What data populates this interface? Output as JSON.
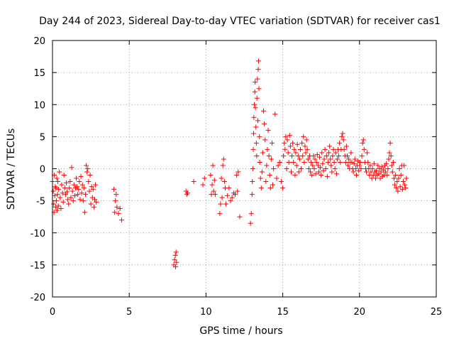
{
  "chart_data": {
    "type": "scatter",
    "title": "Day 244 of 2023, Sidereal Day-to-day VTEC variation (SDTVAR) for receiver cas1",
    "xlabel": "GPS time / hours",
    "ylabel": "SDTVAR / TECUs",
    "xlim": [
      0,
      25
    ],
    "ylim": [
      -20,
      20
    ],
    "xticks": [
      0,
      5,
      10,
      15,
      20,
      25
    ],
    "yticks": [
      -20,
      -15,
      -10,
      -5,
      0,
      5,
      10,
      15,
      20
    ],
    "grid": true,
    "marker": "+",
    "color": "#ff0000",
    "series": [
      {
        "name": "SDTVAR",
        "points": [
          [
            0.0,
            -2.0
          ],
          [
            0.05,
            -3.5
          ],
          [
            0.08,
            -5.5
          ],
          [
            0.1,
            -6.8
          ],
          [
            0.12,
            -1.0
          ],
          [
            0.15,
            -4.2
          ],
          [
            0.18,
            -2.8
          ],
          [
            0.2,
            -6.0
          ],
          [
            0.22,
            -3.0
          ],
          [
            0.25,
            -5.0
          ],
          [
            0.28,
            -1.5
          ],
          [
            0.3,
            -6.5
          ],
          [
            0.33,
            -4.0
          ],
          [
            0.35,
            -2.0
          ],
          [
            0.38,
            -5.8
          ],
          [
            0.4,
            -3.2
          ],
          [
            0.45,
            -0.5
          ],
          [
            0.5,
            -4.5
          ],
          [
            0.55,
            -6.2
          ],
          [
            0.6,
            -2.5
          ],
          [
            0.65,
            -3.8
          ],
          [
            0.7,
            -5.2
          ],
          [
            0.75,
            -1.0
          ],
          [
            0.8,
            -3.0
          ],
          [
            0.85,
            -4.0
          ],
          [
            0.9,
            -2.2
          ],
          [
            0.95,
            -3.6
          ],
          [
            1.0,
            -4.8
          ],
          [
            1.05,
            -5.5
          ],
          [
            1.1,
            -3.0
          ],
          [
            1.15,
            -2.0
          ],
          [
            1.2,
            -4.5
          ],
          [
            1.25,
            0.2
          ],
          [
            1.3,
            -3.5
          ],
          [
            1.35,
            -5.0
          ],
          [
            1.4,
            -2.5
          ],
          [
            1.45,
            -4.2
          ],
          [
            1.5,
            -3.0
          ],
          [
            1.55,
            -1.5
          ],
          [
            1.6,
            -2.8
          ],
          [
            1.65,
            -4.0
          ],
          [
            1.7,
            -3.2
          ],
          [
            1.75,
            -2.0
          ],
          [
            1.8,
            -4.8
          ],
          [
            1.85,
            -1.2
          ],
          [
            1.9,
            -3.8
          ],
          [
            1.95,
            -2.5
          ],
          [
            2.0,
            -5.0
          ],
          [
            2.05,
            -3.0
          ],
          [
            2.1,
            -6.8
          ],
          [
            2.15,
            -4.0
          ],
          [
            2.2,
            0.5
          ],
          [
            2.25,
            -0.5
          ],
          [
            2.3,
            0.0
          ],
          [
            2.35,
            -2.0
          ],
          [
            2.4,
            -3.5
          ],
          [
            2.45,
            -1.0
          ],
          [
            2.5,
            -5.5
          ],
          [
            2.55,
            -2.8
          ],
          [
            2.6,
            -4.5
          ],
          [
            2.65,
            -3.2
          ],
          [
            2.7,
            -6.0
          ],
          [
            2.75,
            -4.8
          ],
          [
            2.8,
            -2.5
          ],
          [
            2.85,
            -5.2
          ],
          [
            4.0,
            -3.2
          ],
          [
            4.05,
            -6.8
          ],
          [
            4.1,
            -5.0
          ],
          [
            4.15,
            -4.0
          ],
          [
            4.2,
            -6.0
          ],
          [
            4.3,
            -7.0
          ],
          [
            4.4,
            -6.2
          ],
          [
            4.5,
            -8.0
          ],
          [
            7.9,
            -15.0
          ],
          [
            7.95,
            -14.2
          ],
          [
            8.0,
            -13.5
          ],
          [
            8.02,
            -15.3
          ],
          [
            8.05,
            -13.0
          ],
          [
            8.08,
            -14.6
          ],
          [
            8.7,
            -3.5
          ],
          [
            8.75,
            -4.0
          ],
          [
            8.8,
            -3.8
          ],
          [
            9.2,
            -2.0
          ],
          [
            9.8,
            -2.5
          ],
          [
            9.9,
            -1.5
          ],
          [
            10.3,
            -1.0
          ],
          [
            10.35,
            -4.0
          ],
          [
            10.4,
            -2.5
          ],
          [
            10.45,
            0.5
          ],
          [
            10.5,
            -3.5
          ],
          [
            10.55,
            -1.8
          ],
          [
            10.6,
            -4.0
          ],
          [
            10.9,
            -7.0
          ],
          [
            10.95,
            -5.5
          ],
          [
            11.0,
            -1.5
          ],
          [
            11.05,
            -4.5
          ],
          [
            11.1,
            0.5
          ],
          [
            11.15,
            1.5
          ],
          [
            11.2,
            -2.0
          ],
          [
            11.25,
            -3.0
          ],
          [
            11.3,
            -5.5
          ],
          [
            11.4,
            -4.2
          ],
          [
            11.5,
            -3.0
          ],
          [
            11.6,
            -5.0
          ],
          [
            11.7,
            -4.5
          ],
          [
            11.8,
            -3.8
          ],
          [
            11.9,
            -4.0
          ],
          [
            12.0,
            -1.0
          ],
          [
            12.05,
            -3.5
          ],
          [
            12.1,
            -0.5
          ],
          [
            12.2,
            -7.5
          ],
          [
            12.9,
            -8.5
          ],
          [
            12.95,
            -7.0
          ],
          [
            13.0,
            -4.0
          ],
          [
            13.02,
            -2.0
          ],
          [
            13.05,
            0.0
          ],
          [
            13.08,
            3.0
          ],
          [
            13.1,
            5.5
          ],
          [
            13.12,
            8.0
          ],
          [
            13.15,
            10.0
          ],
          [
            13.18,
            12.0
          ],
          [
            13.2,
            13.5
          ],
          [
            13.22,
            9.5
          ],
          [
            13.25,
            6.5
          ],
          [
            13.28,
            4.0
          ],
          [
            13.3,
            2.0
          ],
          [
            13.32,
            11.0
          ],
          [
            13.35,
            14.0
          ],
          [
            13.38,
            7.5
          ],
          [
            13.4,
            15.5
          ],
          [
            13.42,
            16.8
          ],
          [
            13.45,
            12.5
          ],
          [
            13.48,
            5.0
          ],
          [
            13.5,
            1.0
          ],
          [
            13.55,
            -1.5
          ],
          [
            13.6,
            -3.0
          ],
          [
            13.65,
            -0.5
          ],
          [
            13.7,
            2.5
          ],
          [
            13.75,
            9.0
          ],
          [
            13.8,
            7.0
          ],
          [
            13.85,
            4.5
          ],
          [
            13.9,
            -2.0
          ],
          [
            13.95,
            0.5
          ],
          [
            14.0,
            3.0
          ],
          [
            14.05,
            6.0
          ],
          [
            14.1,
            2.0
          ],
          [
            14.15,
            -1.0
          ],
          [
            14.2,
            -3.0
          ],
          [
            14.25,
            1.5
          ],
          [
            14.3,
            4.0
          ],
          [
            14.35,
            -2.5
          ],
          [
            14.4,
            0.0
          ],
          [
            14.5,
            8.5
          ],
          [
            14.6,
            -1.5
          ],
          [
            14.7,
            0.5
          ],
          [
            14.8,
            1.0
          ],
          [
            14.9,
            -2.0
          ],
          [
            15.0,
            -3.0
          ],
          [
            15.05,
            2.0
          ],
          [
            15.1,
            4.0
          ],
          [
            15.15,
            3.0
          ],
          [
            15.2,
            5.0
          ],
          [
            15.25,
            0.0
          ],
          [
            15.3,
            4.5
          ],
          [
            15.35,
            2.5
          ],
          [
            15.4,
            1.0
          ],
          [
            15.45,
            5.2
          ],
          [
            15.5,
            3.5
          ],
          [
            15.55,
            -0.5
          ],
          [
            15.6,
            2.0
          ],
          [
            15.65,
            4.0
          ],
          [
            15.7,
            1.0
          ],
          [
            15.75,
            3.0
          ],
          [
            15.8,
            -1.0
          ],
          [
            15.85,
            2.5
          ],
          [
            15.9,
            0.5
          ],
          [
            15.95,
            3.8
          ],
          [
            16.0,
            2.0
          ],
          [
            16.05,
            -0.5
          ],
          [
            16.1,
            1.5
          ],
          [
            16.15,
            3.0
          ],
          [
            16.2,
            0.0
          ],
          [
            16.25,
            4.0
          ],
          [
            16.3,
            2.0
          ],
          [
            16.35,
            5.0
          ],
          [
            16.4,
            1.0
          ],
          [
            16.45,
            3.5
          ],
          [
            16.5,
            2.5
          ],
          [
            16.55,
            4.5
          ],
          [
            16.6,
            3.0
          ],
          [
            16.65,
            1.5
          ],
          [
            16.7,
            0.0
          ],
          [
            16.75,
            2.0
          ],
          [
            16.8,
            -0.5
          ],
          [
            16.85,
            1.0
          ],
          [
            16.9,
            -1.0
          ],
          [
            16.95,
            0.5
          ],
          [
            17.0,
            2.0
          ],
          [
            17.05,
            0.0
          ],
          [
            17.1,
            1.5
          ],
          [
            17.15,
            -0.8
          ],
          [
            17.2,
            1.0
          ],
          [
            17.25,
            2.2
          ],
          [
            17.3,
            0.5
          ],
          [
            17.35,
            -0.5
          ],
          [
            17.4,
            1.8
          ],
          [
            17.45,
            0.2
          ],
          [
            17.5,
            -1.0
          ],
          [
            17.55,
            2.5
          ],
          [
            17.6,
            0.8
          ],
          [
            17.65,
            -0.3
          ],
          [
            17.7,
            1.5
          ],
          [
            17.75,
            3.0
          ],
          [
            17.8,
            0.0
          ],
          [
            17.85,
            2.0
          ],
          [
            17.9,
            -1.2
          ],
          [
            17.95,
            1.0
          ],
          [
            18.0,
            2.5
          ],
          [
            18.05,
            3.5
          ],
          [
            18.1,
            1.5
          ],
          [
            18.15,
            0.5
          ],
          [
            18.2,
            -0.5
          ],
          [
            18.25,
            2.0
          ],
          [
            18.3,
            3.0
          ],
          [
            18.35,
            1.0
          ],
          [
            18.4,
            0.0
          ],
          [
            18.45,
            2.5
          ],
          [
            18.5,
            -0.8
          ],
          [
            18.55,
            1.5
          ],
          [
            18.6,
            3.0
          ],
          [
            18.65,
            2.0
          ],
          [
            18.7,
            4.0
          ],
          [
            18.75,
            1.0
          ],
          [
            18.8,
            3.0
          ],
          [
            18.85,
            5.0
          ],
          [
            18.9,
            5.5
          ],
          [
            18.95,
            4.5
          ],
          [
            19.0,
            3.0
          ],
          [
            19.05,
            2.0
          ],
          [
            19.1,
            1.0
          ],
          [
            19.15,
            3.5
          ],
          [
            19.2,
            2.0
          ],
          [
            19.25,
            0.5
          ],
          [
            19.3,
            1.5
          ],
          [
            19.35,
            0.0
          ],
          [
            19.4,
            1.0
          ],
          [
            19.45,
            2.5
          ],
          [
            19.5,
            1.0
          ],
          [
            19.55,
            0.0
          ],
          [
            19.6,
            -0.5
          ],
          [
            19.65,
            0.8
          ],
          [
            19.7,
            1.5
          ],
          [
            19.75,
            0.0
          ],
          [
            19.8,
            -1.0
          ],
          [
            19.85,
            0.5
          ],
          [
            19.9,
            1.2
          ],
          [
            19.95,
            -0.3
          ],
          [
            20.0,
            0.5
          ],
          [
            20.05,
            1.0
          ],
          [
            20.1,
            0.0
          ],
          [
            20.15,
            2.0
          ],
          [
            20.2,
            4.0
          ],
          [
            20.25,
            4.5
          ],
          [
            20.3,
            3.0
          ],
          [
            20.35,
            1.0
          ],
          [
            20.4,
            0.0
          ],
          [
            20.45,
            -0.5
          ],
          [
            20.5,
            2.5
          ],
          [
            20.55,
            1.0
          ],
          [
            20.6,
            0.0
          ],
          [
            20.65,
            -1.0
          ],
          [
            20.7,
            0.5
          ],
          [
            20.75,
            -0.5
          ],
          [
            20.8,
            -1.5
          ],
          [
            20.85,
            0.0
          ],
          [
            20.9,
            -1.0
          ],
          [
            20.95,
            0.8
          ],
          [
            21.0,
            -0.5
          ],
          [
            21.05,
            -1.5
          ],
          [
            21.1,
            -0.3
          ],
          [
            21.15,
            -1.0
          ],
          [
            21.2,
            0.5
          ],
          [
            21.25,
            -0.8
          ],
          [
            21.3,
            0.0
          ],
          [
            21.35,
            -1.5
          ],
          [
            21.4,
            -0.5
          ],
          [
            21.45,
            0.3
          ],
          [
            21.5,
            -1.2
          ],
          [
            21.55,
            -0.2
          ],
          [
            21.6,
            -1.0
          ],
          [
            21.65,
            0.5
          ],
          [
            21.7,
            -0.5
          ],
          [
            21.75,
            0.8
          ],
          [
            21.8,
            -1.0
          ],
          [
            21.85,
            0.0
          ],
          [
            21.9,
            1.5
          ],
          [
            21.95,
            2.5
          ],
          [
            22.0,
            4.0
          ],
          [
            22.05,
            2.0
          ],
          [
            22.1,
            0.5
          ],
          [
            22.15,
            -0.5
          ],
          [
            22.2,
            1.0
          ],
          [
            22.25,
            -1.5
          ],
          [
            22.3,
            -2.5
          ],
          [
            22.35,
            -1.0
          ],
          [
            22.4,
            -3.0
          ],
          [
            22.45,
            -2.0
          ],
          [
            22.5,
            -3.5
          ],
          [
            22.55,
            -1.5
          ],
          [
            22.6,
            0.0
          ],
          [
            22.65,
            -2.8
          ],
          [
            22.7,
            -1.0
          ],
          [
            22.75,
            0.5
          ],
          [
            22.8,
            -3.2
          ],
          [
            22.85,
            -2.0
          ],
          [
            22.9,
            0.5
          ],
          [
            22.95,
            -2.5
          ],
          [
            23.0,
            -3.0
          ],
          [
            23.05,
            -1.5
          ]
        ]
      }
    ]
  }
}
